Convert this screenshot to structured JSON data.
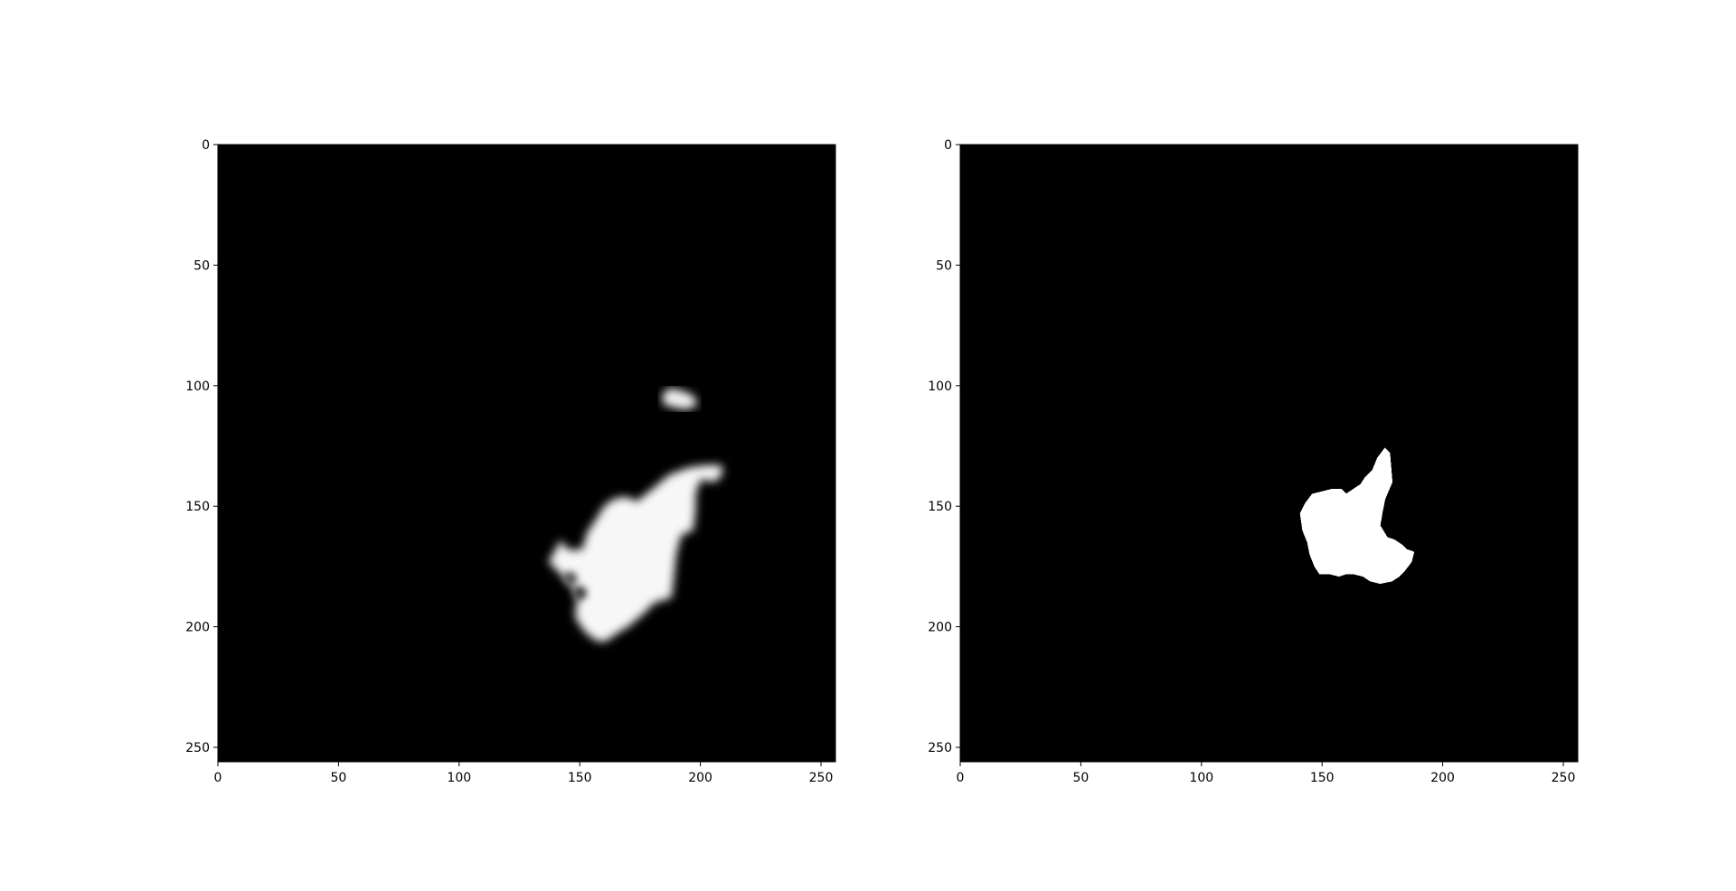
{
  "chart_data": [
    {
      "type": "heatmap",
      "title": "",
      "xlabel": "",
      "ylabel": "",
      "image_size": [
        256,
        256
      ],
      "colormap": "gray",
      "background_value": 0,
      "xlim": [
        0,
        256
      ],
      "ylim": [
        256,
        0
      ],
      "xticks": [
        0,
        50,
        100,
        150,
        200,
        250
      ],
      "yticks": [
        0,
        50,
        100,
        150,
        200,
        250
      ],
      "xtick_labels": [
        "0",
        "50",
        "100",
        "150",
        "200",
        "250"
      ],
      "ytick_labels": [
        "0",
        "50",
        "100",
        "150",
        "200",
        "250"
      ],
      "style": "soft",
      "regions": [
        {
          "value": 0.97,
          "polygon": [
            [
              176,
              146
            ],
            [
              180,
              143
            ],
            [
              187,
              137
            ],
            [
              195,
              134
            ],
            [
              202,
              133
            ],
            [
              209,
              133
            ],
            [
              209,
              137
            ],
            [
              206,
              140
            ],
            [
              200,
              139
            ],
            [
              198,
              145
            ],
            [
              198,
              152
            ],
            [
              197,
              160
            ],
            [
              192,
              162
            ],
            [
              190,
              170
            ],
            [
              189,
              180
            ],
            [
              188,
              188
            ],
            [
              181,
              190
            ],
            [
              176,
              195
            ],
            [
              170,
              200
            ],
            [
              165,
              203
            ],
            [
              161,
              206
            ],
            [
              157,
              206
            ],
            [
              152,
              202
            ],
            [
              148,
              196
            ],
            [
              149,
              188
            ],
            [
              146,
              182
            ],
            [
              141,
              177
            ],
            [
              137,
              173
            ],
            [
              140,
              168
            ],
            [
              142,
              164
            ],
            [
              145,
              168
            ],
            [
              151,
              168
            ],
            [
              153,
              161
            ],
            [
              157,
              155
            ],
            [
              160,
              150
            ],
            [
              164,
              147
            ],
            [
              169,
              146
            ],
            [
              174,
              148
            ]
          ]
        },
        {
          "value": 0.95,
          "polygon": [
            [
              184,
              104
            ],
            [
              187,
              101
            ],
            [
              192,
              102
            ],
            [
              197,
              104
            ],
            [
              199,
              108
            ],
            [
              194,
              110
            ],
            [
              189,
              109
            ],
            [
              185,
              108
            ]
          ]
        }
      ],
      "holes": [
        {
          "x": 150,
          "y": 186,
          "value": 0.25
        },
        {
          "x": 146,
          "y": 180,
          "value": 0.35
        }
      ]
    },
    {
      "type": "heatmap",
      "title": "",
      "xlabel": "",
      "ylabel": "",
      "image_size": [
        256,
        256
      ],
      "colormap": "gray",
      "background_value": 0,
      "xlim": [
        0,
        256
      ],
      "ylim": [
        256,
        0
      ],
      "xticks": [
        0,
        50,
        100,
        150,
        200,
        250
      ],
      "yticks": [
        0,
        50,
        100,
        150,
        200,
        250
      ],
      "xtick_labels": [
        "0",
        "50",
        "100",
        "150",
        "200",
        "250"
      ],
      "ytick_labels": [
        "0",
        "50",
        "100",
        "150",
        "200",
        "250"
      ],
      "style": "binary",
      "regions": [
        {
          "value": 1,
          "polygon": [
            [
              176,
              126
            ],
            [
              178,
              128
            ],
            [
              179,
              140
            ],
            [
              176,
              147
            ],
            [
              175,
              152
            ],
            [
              174,
              158
            ],
            [
              177,
              163
            ],
            [
              180,
              164
            ],
            [
              183,
              166
            ],
            [
              185,
              168
            ],
            [
              188,
              169
            ],
            [
              187,
              173
            ],
            [
              184,
              177
            ],
            [
              182,
              179
            ],
            [
              179,
              181
            ],
            [
              174,
              182
            ],
            [
              170,
              181
            ],
            [
              167,
              179
            ],
            [
              163,
              178
            ],
            [
              160,
              178
            ],
            [
              157,
              179
            ],
            [
              153,
              178
            ],
            [
              149,
              178
            ],
            [
              147,
              175
            ],
            [
              145,
              170
            ],
            [
              144,
              165
            ],
            [
              142,
              160
            ],
            [
              141,
              153
            ],
            [
              143,
              149
            ],
            [
              146,
              145
            ],
            [
              150,
              144
            ],
            [
              154,
              143
            ],
            [
              158,
              143
            ],
            [
              160,
              145
            ],
            [
              163,
              143
            ],
            [
              166,
              141
            ],
            [
              168,
              138
            ],
            [
              171,
              135
            ],
            [
              173,
              130
            ]
          ]
        }
      ],
      "holes": []
    }
  ]
}
